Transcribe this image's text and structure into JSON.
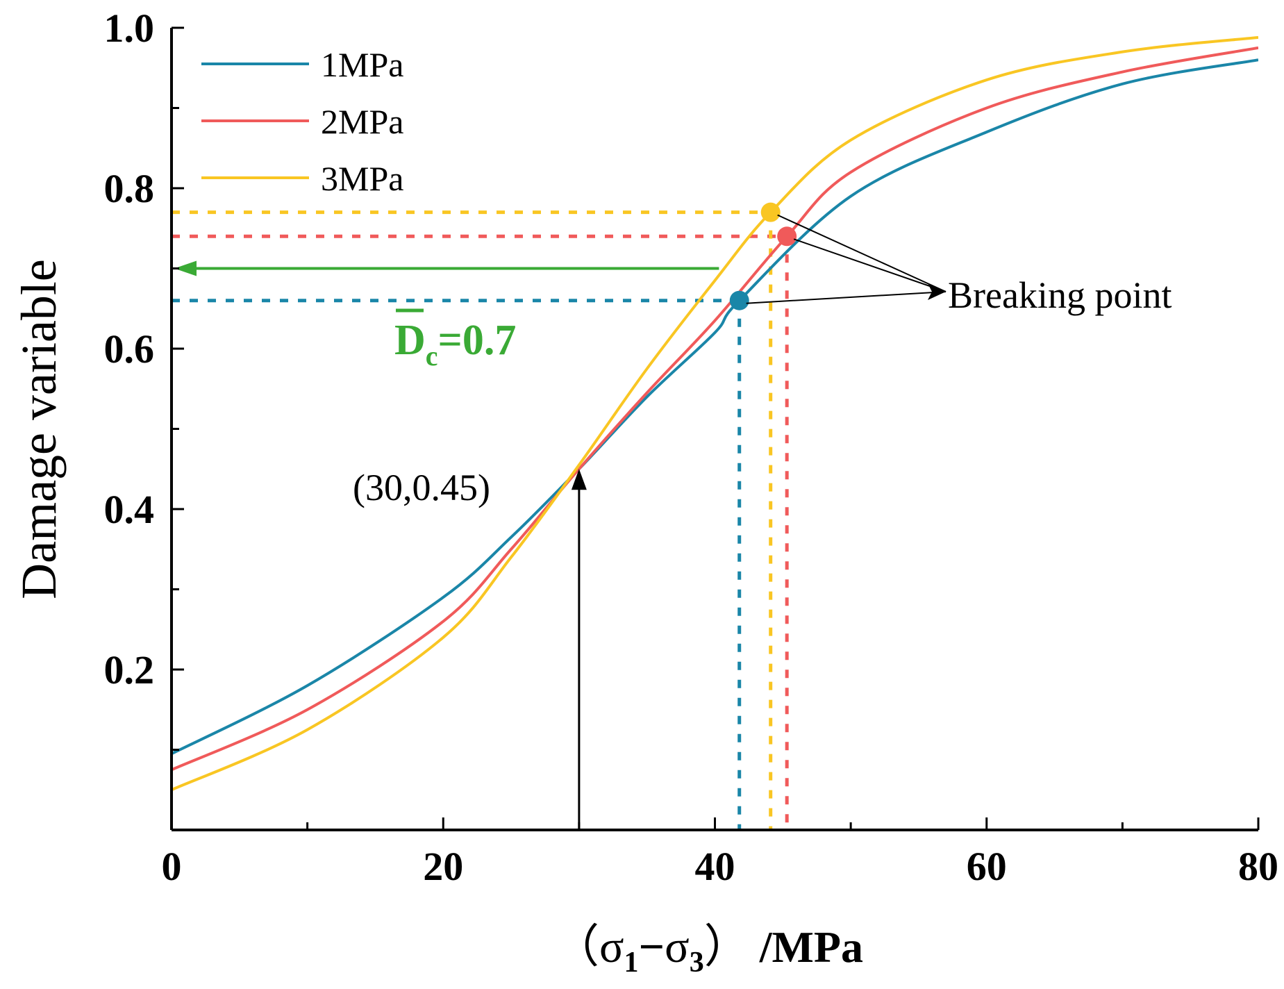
{
  "chart_data": {
    "type": "line",
    "xlabel": "（σ1−σ3）/MPa",
    "xlabel_parts": {
      "open": "（",
      "sigma_a": "σ",
      "sub_a": "1",
      "minus": "−",
      "sigma_b": "σ",
      "sub_b": "3",
      "close": "）",
      "unit": "/MPa"
    },
    "ylabel": "Damage variable",
    "xlim": [
      0,
      80
    ],
    "ylim": [
      0,
      1.0
    ],
    "x_ticks": [
      0,
      20,
      40,
      60,
      80
    ],
    "x_tick_labels": [
      "0",
      "20",
      "40",
      "60",
      "80"
    ],
    "y_ticks": [
      0.2,
      0.4,
      0.6,
      0.8,
      1.0
    ],
    "y_tick_labels": [
      "0.2",
      "0.4",
      "0.6",
      "0.8",
      "1.0"
    ],
    "grid": false,
    "legend_position": "top-left",
    "series": [
      {
        "name": "1MPa",
        "color": "#1a86a8",
        "x": [
          0,
          10,
          20,
          25,
          30,
          35,
          40,
          41.8,
          50,
          60,
          70,
          80
        ],
        "values": [
          0.095,
          0.18,
          0.29,
          0.365,
          0.45,
          0.54,
          0.62,
          0.66,
          0.79,
          0.87,
          0.93,
          0.96
        ],
        "breaking_point": [
          41.8,
          0.66
        ]
      },
      {
        "name": "2MPa",
        "color": "#f05a5a",
        "x": [
          0,
          10,
          20,
          25,
          30,
          35,
          40,
          45.3,
          50,
          60,
          70,
          80
        ],
        "values": [
          0.075,
          0.15,
          0.26,
          0.35,
          0.45,
          0.545,
          0.635,
          0.74,
          0.82,
          0.9,
          0.945,
          0.975
        ],
        "breaking_point": [
          45.3,
          0.74
        ]
      },
      {
        "name": "3MPa",
        "color": "#f9c623",
        "x": [
          0,
          10,
          20,
          25,
          30,
          35,
          40,
          44.1,
          50,
          60,
          70,
          80
        ],
        "values": [
          0.05,
          0.125,
          0.24,
          0.34,
          0.455,
          0.575,
          0.685,
          0.77,
          0.86,
          0.935,
          0.97,
          0.988
        ],
        "breaking_point": [
          44.1,
          0.77
        ]
      }
    ],
    "annotations": {
      "breaking_point_label": "Breaking point",
      "intersection_label": "(30,0.45)",
      "intersection_point": [
        30,
        0.45
      ],
      "dc_text_main": "D",
      "dc_text_sub": "c",
      "dc_text_value": "=0.7",
      "dc_value": 0.7,
      "dc_color": "#3aaa35",
      "dc_arrow_from_x": 40.3
    }
  }
}
